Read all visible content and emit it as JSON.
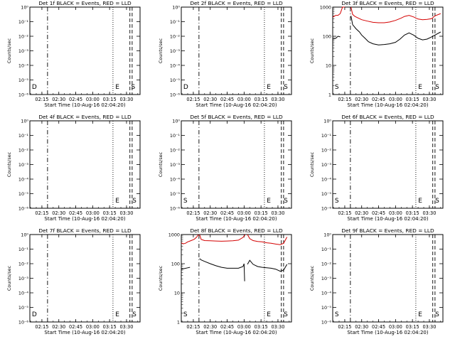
{
  "colors": {
    "events": "#000000",
    "lld": "#d40000",
    "axis": "#000000"
  },
  "panels_layout": {
    "rows": 3,
    "cols": 3
  },
  "chart_data": [
    {
      "type": "line",
      "title": "Det 1f BLACK = Events, RED = LLD",
      "xlabel": "Start Time (10-Aug-16 02:04:20)",
      "ylabel": "Counts/sec",
      "yscale": "log",
      "ylim": [
        1,
        1000
      ],
      "xlim": [
        "02:04:20",
        "03:42:00"
      ],
      "xtick_labels": [
        "02:15",
        "02:30",
        "02:45",
        "03:00",
        "03:15",
        "03:30"
      ],
      "ytick_labels": [
        "10⁰",
        "10⁻¹",
        "10⁻²",
        "10⁻³",
        "10⁻⁴",
        "10⁻⁵",
        "10⁻⁶"
      ],
      "markers": [
        {
          "label": "D",
          "t": "02:05:30"
        },
        {
          "label": "E",
          "t": "03:19:30"
        },
        {
          "label": "S",
          "t": "03:33:30"
        }
      ],
      "vlines": [
        {
          "t": "02:20:00",
          "style": "dashdot"
        },
        {
          "t": "03:18:00",
          "style": "dotted"
        },
        {
          "t": "03:33:00",
          "style": "dashed"
        },
        {
          "t": "03:35:00",
          "style": "dashed"
        }
      ],
      "series": []
    },
    {
      "type": "line",
      "title": "Det 2f BLACK = Events, RED = LLD",
      "xlabel": "Start Time (10-Aug-16 02:04:20)",
      "ylabel": "Counts/sec",
      "yscale": "log",
      "ylim": [
        1,
        1000
      ],
      "xlim": [
        "02:04:20",
        "03:42:00"
      ],
      "xtick_labels": [
        "02:15",
        "02:30",
        "02:45",
        "03:00",
        "03:15",
        "03:30"
      ],
      "ytick_labels": [
        "10⁰",
        "10⁻¹",
        "10⁻²",
        "10⁻³",
        "10⁻⁴",
        "10⁻⁵",
        "10⁻⁶"
      ],
      "markers": [
        {
          "label": "D",
          "t": "02:05:30"
        },
        {
          "label": "E",
          "t": "03:19:30"
        },
        {
          "label": "S",
          "t": "03:34:30"
        }
      ],
      "vlines": [
        {
          "t": "02:20:00",
          "style": "dashdot"
        },
        {
          "t": "03:18:00",
          "style": "dotted"
        },
        {
          "t": "03:33:00",
          "style": "dashed"
        },
        {
          "t": "03:35:00",
          "style": "dashed"
        }
      ],
      "series": []
    },
    {
      "type": "line",
      "title": "Det 3f BLACK = Events, RED = LLD",
      "xlabel": "Start Time (10-Aug-16 02:04:20)",
      "ylabel": "Counts/sec",
      "yscale": "log",
      "ylim": [
        1,
        1000
      ],
      "xlim": [
        "02:04:20",
        "03:42:00"
      ],
      "xtick_labels": [
        "02:15",
        "02:30",
        "02:45",
        "03:00",
        "03:15",
        "03:30"
      ],
      "ytick_labels": [
        "1000",
        "100",
        "10",
        "1"
      ],
      "markers": [
        {
          "label": "S",
          "t": "02:05:30"
        },
        {
          "label": "E",
          "t": "03:19:30"
        },
        {
          "label": "S",
          "t": "03:34:30"
        }
      ],
      "vlines": [
        {
          "t": "02:20:00",
          "style": "dashdot"
        },
        {
          "t": "03:18:00",
          "style": "dotted"
        },
        {
          "t": "03:33:00",
          "style": "dashed"
        },
        {
          "t": "03:35:00",
          "style": "dashed"
        }
      ],
      "series": [
        {
          "color": "lld",
          "segments": [
            {
              "x": [
                "02:04:20",
                "02:07:00",
                "02:09:00",
                "02:11:00",
                "02:13:00",
                "02:15:00"
              ],
              "y": [
                450,
                520,
                520,
                600,
                1000,
                1000
              ]
            },
            {
              "x": [
                "02:20:30",
                "02:22:00",
                "02:24:00",
                "02:27:00",
                "02:30:00",
                "02:35:00",
                "02:40:00",
                "02:45:00",
                "02:50:00",
                "02:55:00",
                "03:00:00",
                "03:05:00",
                "03:08:00",
                "03:12:00",
                "03:16:00",
                "03:20:00",
                "03:24:00",
                "03:28:00",
                "03:32:00",
                "03:35:00",
                "03:40:00"
              ],
              "y": [
                1000,
                560,
                480,
                420,
                370,
                330,
                300,
                290,
                290,
                310,
                350,
                420,
                480,
                520,
                460,
                390,
                370,
                380,
                400,
                500,
                600
              ]
            }
          ]
        },
        {
          "color": "events",
          "segments": [
            {
              "x": [
                "02:04:20",
                "02:07:00",
                "02:09:00",
                "02:11:00"
              ],
              "y": [
                80,
                85,
                100,
                95
              ]
            },
            {
              "x": [
                "02:20:30",
                "02:22:00",
                "02:25:00",
                "02:28:00",
                "02:30:00",
                "02:33:00",
                "02:36:00",
                "02:40:00",
                "02:45:00",
                "02:50:00",
                "02:55:00",
                "03:00:00",
                "03:04:00",
                "03:08:00",
                "03:12:00",
                "03:16:00",
                "03:20:00",
                "03:24:00",
                "03:28:00",
                "03:32:00",
                "03:35:00",
                "03:40:00"
              ],
              "y": [
                500,
                250,
                180,
                140,
                110,
                85,
                65,
                55,
                50,
                52,
                55,
                62,
                80,
                110,
                130,
                110,
                85,
                75,
                80,
                95,
                110,
                140
              ]
            }
          ]
        }
      ]
    },
    {
      "type": "line",
      "title": "Det 4f BLACK = Events, RED = LLD",
      "xlabel": "Start Time (10-Aug-16 02:04:20)",
      "ylabel": "Counts/sec",
      "yscale": "log",
      "ylim": [
        1,
        1000
      ],
      "xlim": [
        "02:04:20",
        "03:42:00"
      ],
      "xtick_labels": [
        "02:15",
        "02:30",
        "02:45",
        "03:00",
        "03:15",
        "03:30"
      ],
      "ytick_labels": [
        "10⁰",
        "10⁻¹",
        "10⁻²",
        "10⁻³",
        "10⁻⁴",
        "10⁻⁵",
        "10⁻⁶"
      ],
      "markers": [
        {
          "label": "E",
          "t": "03:19:30"
        },
        {
          "label": "S",
          "t": "03:34:30"
        }
      ],
      "vlines": [
        {
          "t": "02:20:00",
          "style": "dashdot"
        },
        {
          "t": "03:18:00",
          "style": "dotted"
        },
        {
          "t": "03:33:00",
          "style": "dashed"
        },
        {
          "t": "03:35:00",
          "style": "dashed"
        }
      ],
      "series": []
    },
    {
      "type": "line",
      "title": "Det 5f BLACK = Events, RED = LLD",
      "xlabel": "Start Time (10-Aug-16 02:04:20)",
      "ylabel": "Counts/sec",
      "yscale": "log",
      "ylim": [
        1,
        1000
      ],
      "xlim": [
        "02:04:20",
        "03:42:00"
      ],
      "xtick_labels": [
        "02:15",
        "02:30",
        "02:45",
        "03:00",
        "03:15",
        "03:30"
      ],
      "ytick_labels": [
        "10⁰",
        "10⁻¹",
        "10⁻²",
        "10⁻³",
        "10⁻⁴",
        "10⁻⁵",
        "10⁻⁶"
      ],
      "markers": [
        {
          "label": "S",
          "t": "02:05:30"
        },
        {
          "label": "E",
          "t": "03:19:30"
        },
        {
          "label": "S",
          "t": "03:34:30"
        }
      ],
      "vlines": [
        {
          "t": "02:20:00",
          "style": "dashdot"
        },
        {
          "t": "03:18:00",
          "style": "dotted"
        },
        {
          "t": "03:33:00",
          "style": "dashed"
        },
        {
          "t": "03:35:00",
          "style": "dashed"
        }
      ],
      "series": []
    },
    {
      "type": "line",
      "title": "Det 6f BLACK = Events, RED = LLD",
      "xlabel": "Start Time (10-Aug-16 02:04:20)",
      "ylabel": "Counts/sec",
      "yscale": "log",
      "ylim": [
        1,
        1000
      ],
      "xlim": [
        "02:04:20",
        "03:42:00"
      ],
      "xtick_labels": [
        "02:15",
        "02:30",
        "02:45",
        "03:00",
        "03:15",
        "03:30"
      ],
      "ytick_labels": [
        "10⁰",
        "10⁻¹",
        "10⁻²",
        "10⁻³",
        "10⁻⁴",
        "10⁻⁵",
        "10⁻⁶"
      ],
      "markers": [
        {
          "label": "S",
          "t": "02:05:30"
        },
        {
          "label": "E",
          "t": "03:19:30"
        },
        {
          "label": "S",
          "t": "03:34:30"
        }
      ],
      "vlines": [
        {
          "t": "02:20:00",
          "style": "dashdot"
        },
        {
          "t": "03:18:00",
          "style": "dotted"
        },
        {
          "t": "03:33:00",
          "style": "dashed"
        },
        {
          "t": "03:35:00",
          "style": "dashed"
        }
      ],
      "series": []
    },
    {
      "type": "line",
      "title": "Det 7f BLACK = Events, RED = LLD",
      "xlabel": "Start Time (10-Aug-16 02:04:20)",
      "ylabel": "Counts/sec",
      "yscale": "log",
      "ylim": [
        1,
        1000
      ],
      "xlim": [
        "02:04:20",
        "03:42:00"
      ],
      "xtick_labels": [
        "02:15",
        "02:30",
        "02:45",
        "03:00",
        "03:15",
        "03:30"
      ],
      "ytick_labels": [
        "10⁰",
        "10⁻¹",
        "10⁻²",
        "10⁻³",
        "10⁻⁴",
        "10⁻⁵",
        "10⁻⁶"
      ],
      "markers": [
        {
          "label": "D",
          "t": "02:05:30"
        },
        {
          "label": "E",
          "t": "03:19:30"
        },
        {
          "label": "S",
          "t": "03:34:30"
        }
      ],
      "vlines": [
        {
          "t": "02:20:00",
          "style": "dashdot"
        },
        {
          "t": "03:18:00",
          "style": "dotted"
        },
        {
          "t": "03:33:00",
          "style": "dashed"
        },
        {
          "t": "03:35:00",
          "style": "dashed"
        }
      ],
      "series": []
    },
    {
      "type": "line",
      "title": "Det 8f BLACK = Events, RED = LLD",
      "xlabel": "Start Time (10-Aug-16 02:04:20)",
      "ylabel": "Counts/sec",
      "yscale": "log",
      "ylim": [
        1,
        1000
      ],
      "xlim": [
        "02:04:20",
        "03:42:00"
      ],
      "xtick_labels": [
        "02:15",
        "02:30",
        "02:45",
        "03:00",
        "03:15",
        "03:30"
      ],
      "ytick_labels": [
        "1000",
        "100",
        "10",
        "1"
      ],
      "markers": [
        {
          "label": "S",
          "t": "02:05:30"
        },
        {
          "label": "E",
          "t": "03:19:30"
        },
        {
          "label": "S",
          "t": "03:34:30"
        }
      ],
      "vlines": [
        {
          "t": "02:20:00",
          "style": "dashdot"
        },
        {
          "t": "03:18:00",
          "style": "dotted"
        },
        {
          "t": "03:33:00",
          "style": "dashed"
        },
        {
          "t": "03:35:00",
          "style": "dashed"
        }
      ],
      "series": [
        {
          "color": "lld",
          "segments": [
            {
              "x": [
                "02:04:20",
                "02:06:00",
                "02:08:00",
                "02:10:00",
                "02:12:00",
                "02:14:00",
                "02:16:00",
                "02:18:00",
                "02:19:30"
              ],
              "y": [
                520,
                480,
                500,
                560,
                600,
                640,
                700,
                820,
                1000
              ]
            },
            {
              "x": [
                "02:20:30",
                "02:22:00",
                "02:25:00",
                "02:30:00",
                "02:35:00",
                "02:40:00",
                "02:45:00",
                "02:50:00",
                "02:55:00",
                "02:59:00",
                "03:01:00"
              ],
              "y": [
                1000,
                680,
                620,
                610,
                600,
                590,
                600,
                610,
                640,
                800,
                1000
              ]
            },
            {
              "x": [
                "03:03:00",
                "03:05:00",
                "03:08:00",
                "03:12:00",
                "03:16:00",
                "03:20:00",
                "03:24:00",
                "03:28:00",
                "03:32:00",
                "03:35:00",
                "03:38:00"
              ],
              "y": [
                1000,
                720,
                620,
                580,
                560,
                520,
                500,
                470,
                450,
                500,
                820
              ]
            }
          ]
        },
        {
          "color": "events",
          "segments": [
            {
              "x": [
                "02:04:20",
                "02:07:00",
                "02:10:00",
                "02:12:00"
              ],
              "y": [
                65,
                68,
                72,
                75
              ]
            },
            {
              "x": [
                "02:20:30",
                "02:22:00",
                "02:25:00",
                "02:30:00",
                "02:35:00",
                "02:40:00",
                "02:45:00",
                "02:50:00",
                "02:55:00",
                "02:59:00",
                "03:00:00",
                "03:00:30"
              ],
              "y": [
                150,
                135,
                120,
                100,
                85,
                75,
                70,
                70,
                70,
                80,
                100,
                25
              ]
            },
            {
              "x": [
                "03:03:00",
                "03:05:00",
                "03:08:00",
                "03:12:00",
                "03:16:00",
                "03:20:00",
                "03:24:00",
                "03:28:00",
                "03:32:00",
                "03:35:00",
                "03:38:00"
              ],
              "y": [
                95,
                130,
                95,
                80,
                75,
                72,
                70,
                65,
                55,
                60,
                95
              ]
            }
          ]
        }
      ]
    },
    {
      "type": "line",
      "title": "Det 9f BLACK = Events, RED = LLD",
      "xlabel": "Start Time (10-Aug-16 02:04:20)",
      "ylabel": "Counts/sec",
      "yscale": "log",
      "ylim": [
        1,
        1000
      ],
      "xlim": [
        "02:04:20",
        "03:42:00"
      ],
      "xtick_labels": [
        "02:15",
        "02:30",
        "02:45",
        "03:00",
        "03:15",
        "03:30"
      ],
      "ytick_labels": [
        "10⁰",
        "10⁻¹",
        "10⁻²",
        "10⁻³",
        "10⁻⁴",
        "10⁻⁵",
        "10⁻⁶"
      ],
      "markers": [
        {
          "label": "S",
          "t": "02:05:30"
        },
        {
          "label": "E",
          "t": "03:19:30"
        },
        {
          "label": "S",
          "t": "03:34:30"
        }
      ],
      "vlines": [
        {
          "t": "02:20:00",
          "style": "dashdot"
        },
        {
          "t": "03:18:00",
          "style": "dotted"
        },
        {
          "t": "03:33:00",
          "style": "dashed"
        },
        {
          "t": "03:35:00",
          "style": "dashed"
        }
      ],
      "series": []
    }
  ]
}
